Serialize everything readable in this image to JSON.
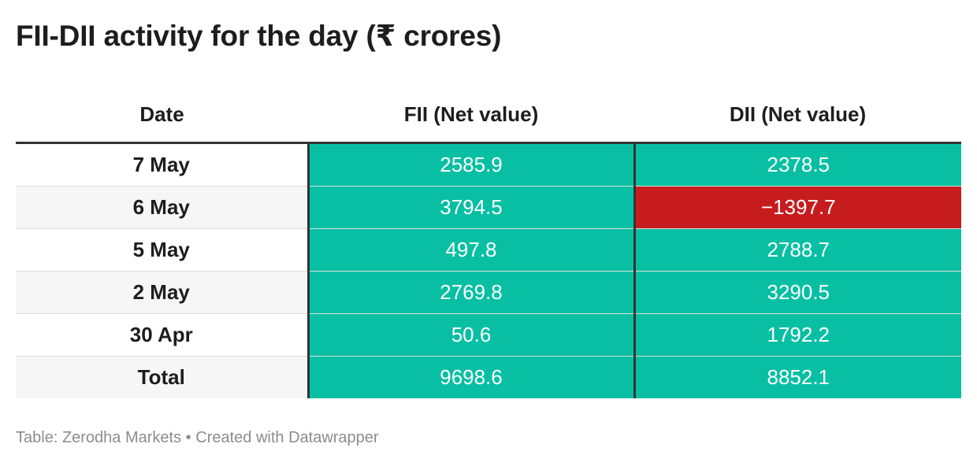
{
  "title": "FII-DII activity for the day (₹ crores)",
  "colors": {
    "positive": "#09bfa3",
    "negative": "#c71c1e"
  },
  "chart_data": {
    "type": "table",
    "title": "FII-DII activity for the day (₹ crores)",
    "columns": [
      "Date",
      "FII (Net value)",
      "DII (Net value)"
    ],
    "rows": [
      {
        "date": "7 May",
        "fii": 2585.9,
        "dii": 2378.5
      },
      {
        "date": "6 May",
        "fii": 3794.5,
        "dii": -1397.7
      },
      {
        "date": "5 May",
        "fii": 497.8,
        "dii": 2788.7
      },
      {
        "date": "2 May",
        "fii": 2769.8,
        "dii": 3290.5
      },
      {
        "date": "30 Apr",
        "fii": 50.6,
        "dii": 1792.2
      },
      {
        "date": "Total",
        "fii": 9698.6,
        "dii": 8852.1
      }
    ]
  },
  "footer": {
    "source_label": "Table:",
    "source": "Zerodha Markets",
    "separator": "•",
    "credit": "Created with Datawrapper"
  }
}
